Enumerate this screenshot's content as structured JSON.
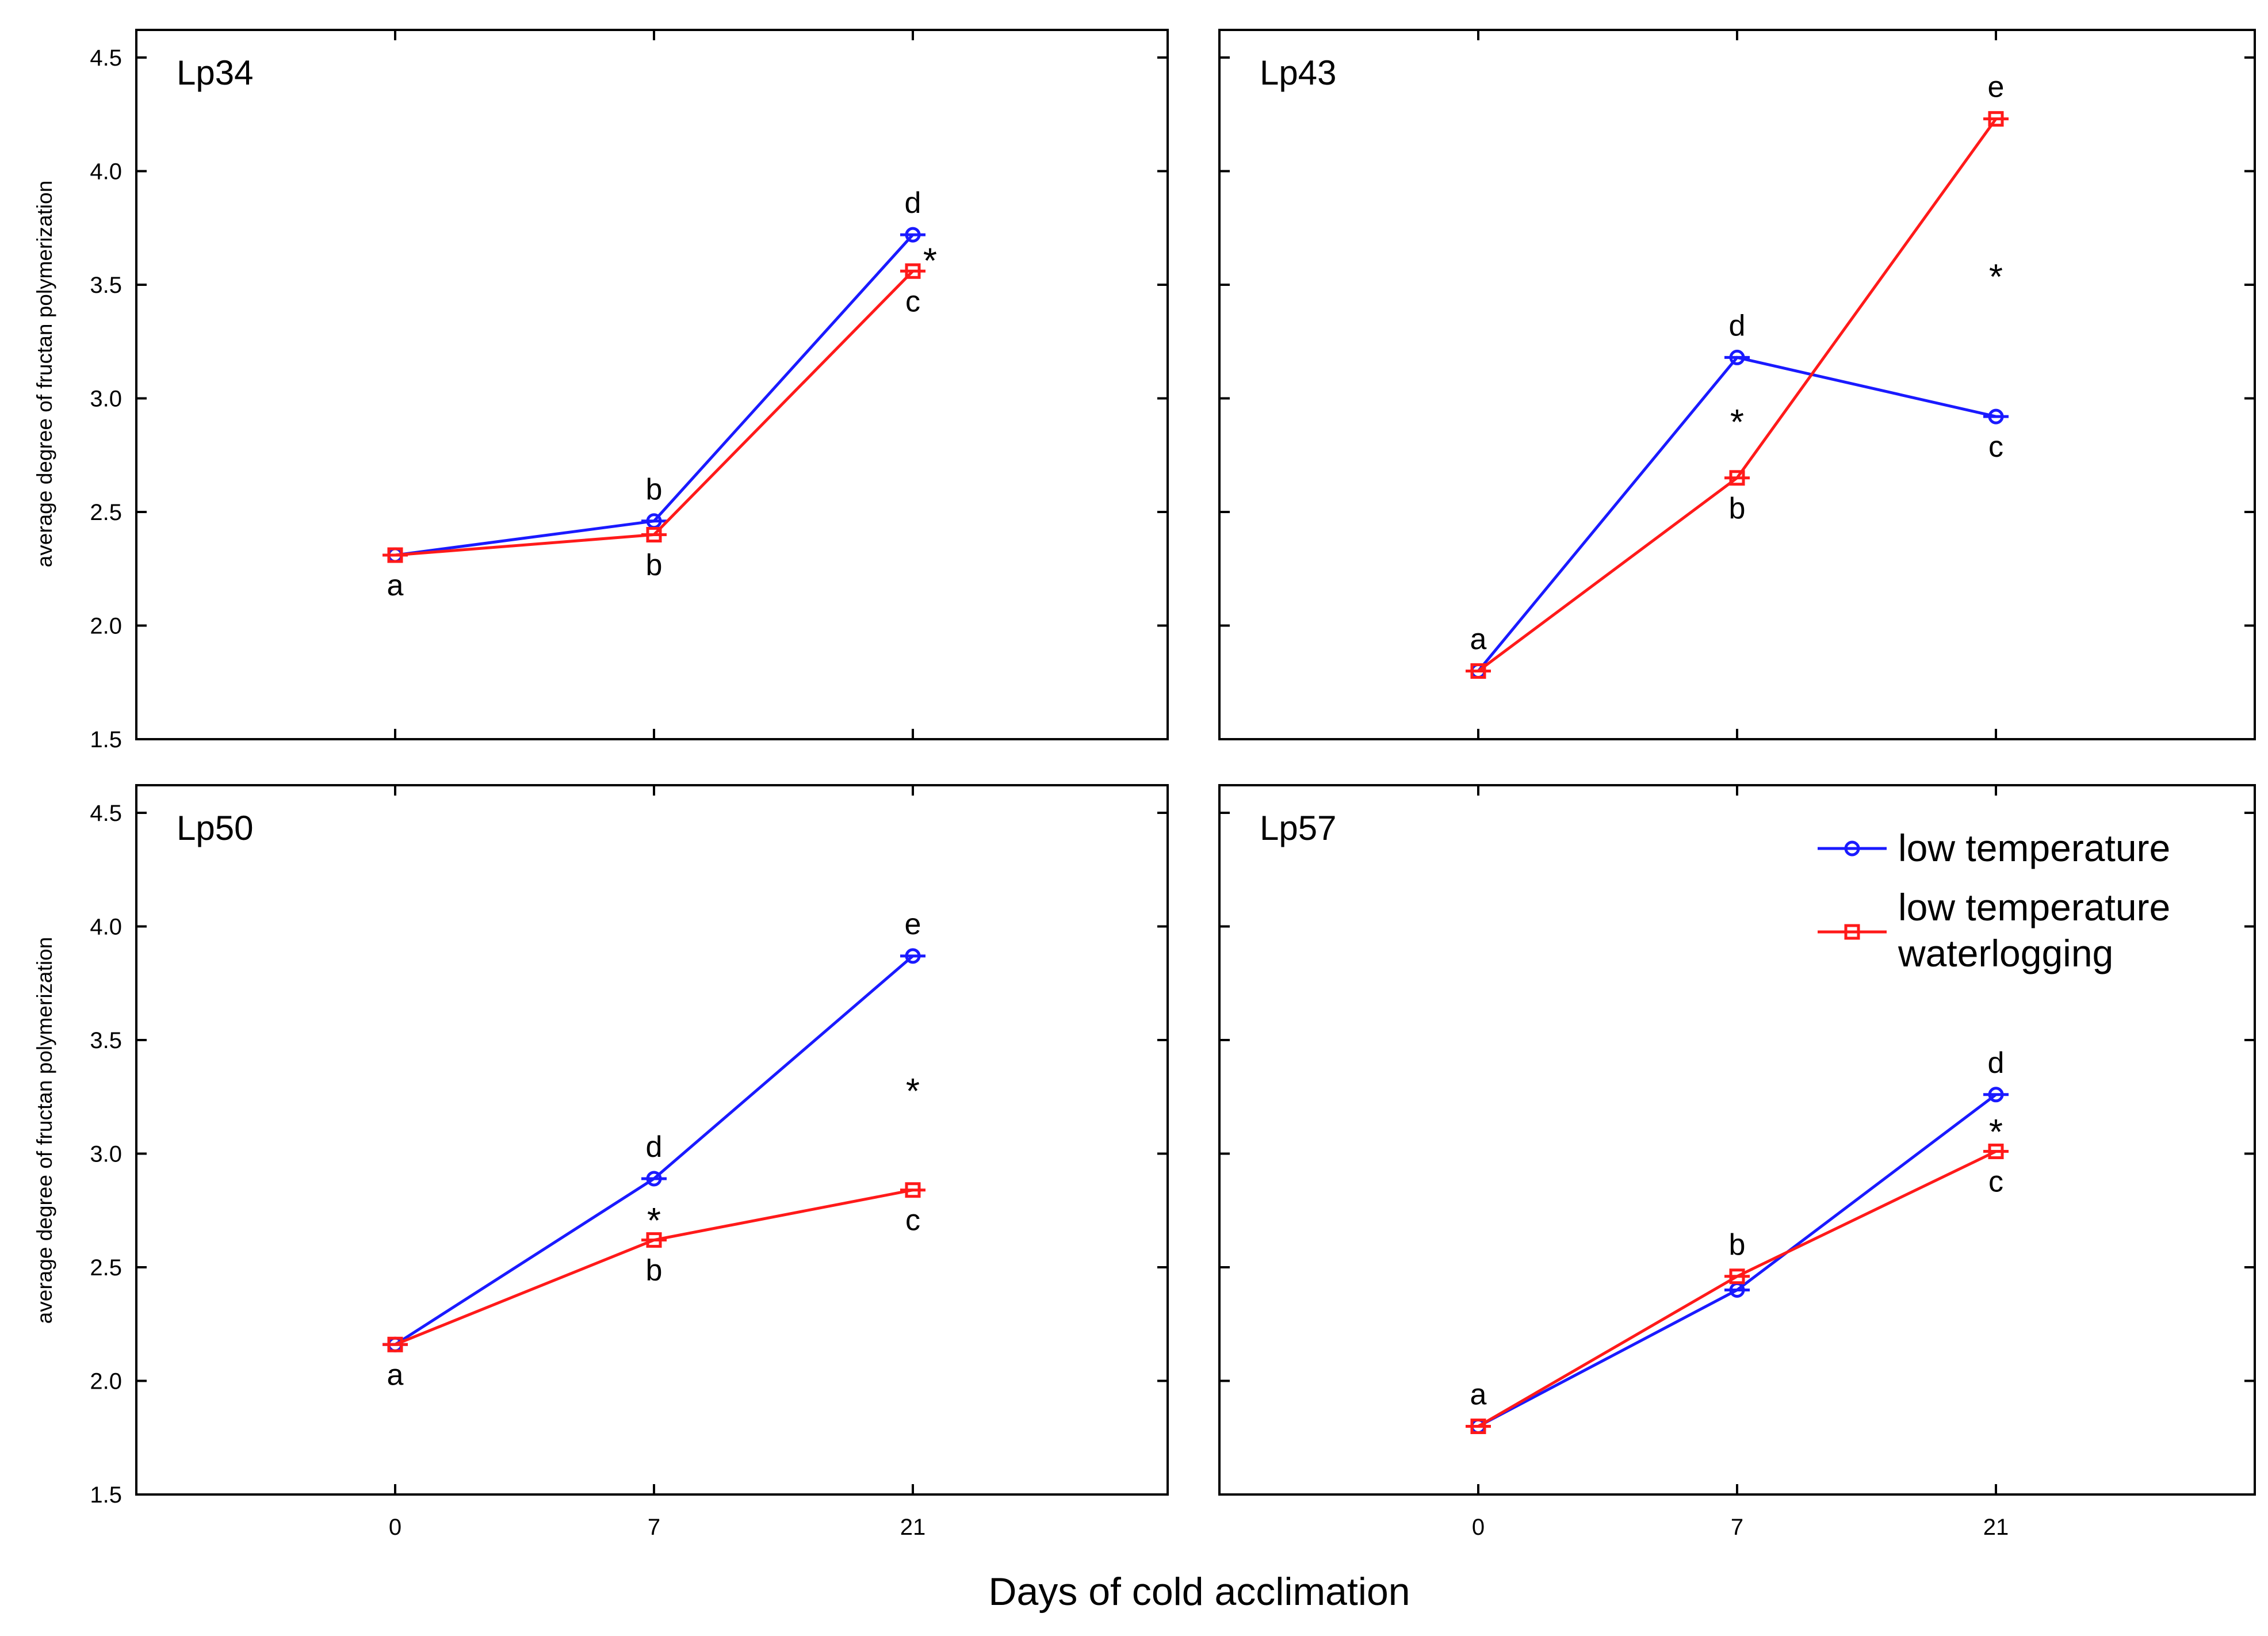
{
  "colors": {
    "low_temperature": "#1a1aff",
    "low_temperature_waterlogging": "#ff1a1a",
    "frame": "#000000"
  },
  "figure": {
    "xlabel": "Days of cold acclimation",
    "ylabel": "average degree of fructan polymerization"
  },
  "legend": {
    "placement": "top-right of Lp57 panel",
    "entries": [
      {
        "lines": [
          "low temperature"
        ],
        "marker": "circle",
        "color_key": "low_temperature"
      },
      {
        "lines": [
          "low temperature",
          "waterlogging"
        ],
        "marker": "square",
        "color_key": "low_temperature_waterlogging"
      }
    ]
  },
  "chart_data": [
    {
      "type": "line",
      "title": "Lp34",
      "x_categories": [
        "0",
        "7",
        "21"
      ],
      "ylim": [
        1.5,
        4.6
      ],
      "yticks": [
        "1.5",
        "2.0",
        "2.5",
        "3.0",
        "3.5",
        "4.0",
        "4.5"
      ],
      "series": [
        {
          "name": "low temperature",
          "marker": "circle",
          "values": [
            2.31,
            2.46,
            3.72
          ],
          "letters": [
            "",
            "b",
            "d"
          ]
        },
        {
          "name": "low temperature waterlogging",
          "marker": "square",
          "values": [
            2.31,
            2.4,
            3.56
          ],
          "letters": [
            "a",
            "b",
            "c"
          ]
        }
      ],
      "significance": [
        {
          "x": "21",
          "y": 3.64,
          "label": "*"
        }
      ]
    },
    {
      "type": "line",
      "title": "Lp43",
      "x_categories": [
        "0",
        "7",
        "21"
      ],
      "ylim": [
        1.5,
        4.6
      ],
      "yticks": [
        "1.5",
        "2.0",
        "2.5",
        "3.0",
        "3.5",
        "4.0",
        "4.5"
      ],
      "series": [
        {
          "name": "low temperature",
          "marker": "circle",
          "values": [
            1.8,
            3.18,
            2.92
          ],
          "letters": [
            "a",
            "d",
            "c"
          ]
        },
        {
          "name": "low temperature waterlogging",
          "marker": "square",
          "values": [
            1.8,
            2.65,
            4.23
          ],
          "letters": [
            "",
            "b",
            "e"
          ]
        }
      ],
      "significance": [
        {
          "x": "7",
          "y": 2.93,
          "label": "*"
        },
        {
          "x": "21",
          "y": 3.57,
          "label": "*"
        }
      ]
    },
    {
      "type": "line",
      "title": "Lp50",
      "x_categories": [
        "0",
        "7",
        "21"
      ],
      "ylim": [
        1.5,
        4.6
      ],
      "yticks": [
        "1.5",
        "2.0",
        "2.5",
        "3.0",
        "3.5",
        "4.0",
        "4.5"
      ],
      "series": [
        {
          "name": "low temperature",
          "marker": "circle",
          "values": [
            2.16,
            2.89,
            3.87
          ],
          "letters": [
            "",
            "d",
            "e"
          ]
        },
        {
          "name": "low temperature waterlogging",
          "marker": "square",
          "values": [
            2.16,
            2.62,
            2.84
          ],
          "letters": [
            "a",
            "b",
            "c"
          ]
        }
      ],
      "significance": [
        {
          "x": "7",
          "y": 2.74,
          "label": "*"
        },
        {
          "x": "21",
          "y": 3.31,
          "label": "*"
        }
      ]
    },
    {
      "type": "line",
      "title": "Lp57",
      "x_categories": [
        "0",
        "7",
        "21"
      ],
      "ylim": [
        1.5,
        4.6
      ],
      "yticks": [
        "1.5",
        "2.0",
        "2.5",
        "3.0",
        "3.5",
        "4.0",
        "4.5"
      ],
      "series": [
        {
          "name": "low temperature",
          "marker": "circle",
          "values": [
            1.8,
            2.4,
            3.26
          ],
          "letters": [
            "a",
            "",
            "d"
          ]
        },
        {
          "name": "low temperature waterlogging",
          "marker": "square",
          "values": [
            1.8,
            2.46,
            3.01
          ],
          "letters": [
            "",
            "b",
            "c"
          ]
        }
      ],
      "significance": [
        {
          "x": "21",
          "y": 3.13,
          "label": "*"
        }
      ]
    }
  ]
}
